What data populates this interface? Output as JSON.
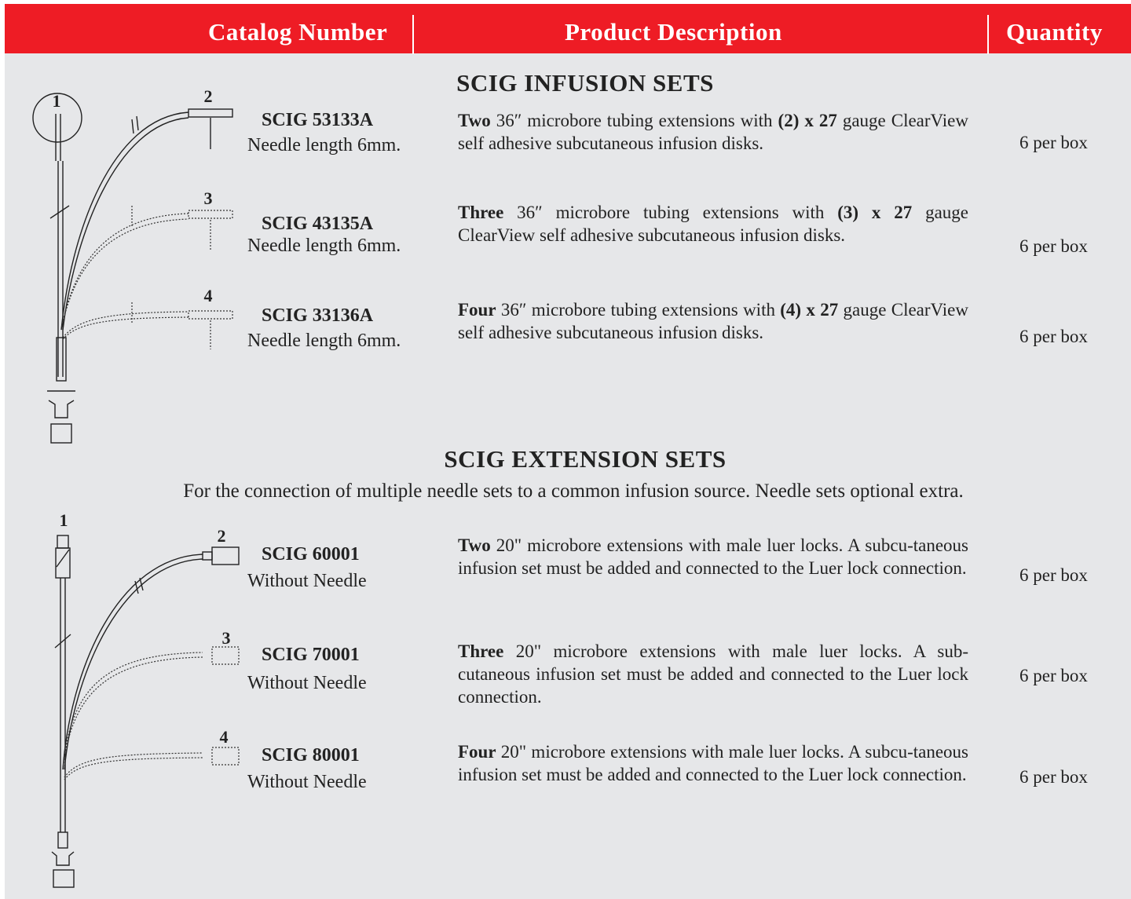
{
  "header": {
    "columns": [
      "Catalog Number",
      "Product Description",
      "Quantity"
    ]
  },
  "sections": [
    {
      "title": "SCIG INFUSION SETS",
      "diagram_labels": [
        "1",
        "2",
        "3",
        "4"
      ],
      "items": [
        {
          "catalog": "SCIG 53133A",
          "note": "Needle length 6mm.",
          "quantity": "6 per box",
          "description": [
            {
              "text": "Two",
              "bold": true
            },
            {
              "text": " 36″ microbore tubing extensions with "
            },
            {
              "text": "(2) x 27",
              "bold": true
            },
            {
              "text": " gauge ClearView self adhesive subcutaneous infusion  disks."
            }
          ]
        },
        {
          "catalog": "SCIG 43135A",
          "note": "Needle length 6mm.",
          "quantity": "6 per box",
          "description": [
            {
              "text": "Three",
              "bold": true
            },
            {
              "text": " 36″ microbore tubing extensions with "
            },
            {
              "text": "(3) x 27",
              "bold": true
            },
            {
              "text": " gauge ClearView self adhesive subcutaneous infusion  disks."
            }
          ]
        },
        {
          "catalog": "SCIG 33136A",
          "note": "Needle length 6mm.",
          "quantity": "6 per box",
          "description": [
            {
              "text": "Four",
              "bold": true
            },
            {
              "text": " 36″ microbore tubing extensions with "
            },
            {
              "text": "(4) x 27",
              "bold": true
            },
            {
              "text": " gauge ClearView self adhesive subcutaneous infusion  disks."
            }
          ]
        }
      ]
    },
    {
      "title": "SCIG EXTENSION SETS",
      "subtitle": "For the connection of multiple needle sets to a common infusion source.  Needle sets optional extra.",
      "diagram_labels": [
        "1",
        "2",
        "3",
        "4"
      ],
      "items": [
        {
          "catalog": "SCIG 60001",
          "note": "Without Needle",
          "quantity": "6 per box",
          "description": [
            {
              "text": "Two",
              "bold": true
            },
            {
              "text": " 20\" microbore extensions  with male luer locks.  A subcu-taneous infusion set must be added and connected to the Luer lock connection."
            }
          ]
        },
        {
          "catalog": "SCIG 70001",
          "note": "Without Needle",
          "quantity": "6 per box",
          "description": [
            {
              "text": "Three",
              "bold": true
            },
            {
              "text": " 20\" microbore extensions  with male luer locks.  A sub-cutaneous infusion set must be added and connected to the Luer lock connection."
            }
          ]
        },
        {
          "catalog": "SCIG 80001",
          "note": "Without Needle",
          "quantity": "6 per box",
          "description": [
            {
              "text": "Four",
              "bold": true
            },
            {
              "text": " 20\" microbore extensions  with male luer locks.  A subcu-taneous infusion set must be added and connected to the Luer lock connection."
            }
          ]
        }
      ]
    }
  ]
}
